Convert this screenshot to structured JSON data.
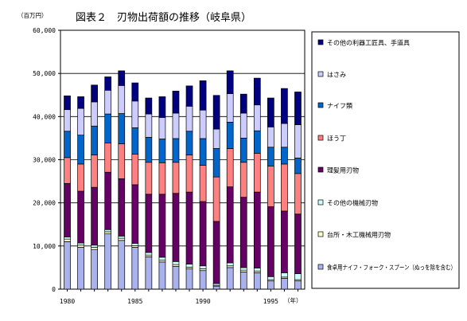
{
  "chart_data": {
    "type": "bar",
    "stacked": true,
    "title": "図表２　刃物出荷額の推移（岐阜県）",
    "ylabel": "（百万円）",
    "xlabel": "（年）",
    "ylim": [
      0,
      60000
    ],
    "yticks": [
      "0",
      "10,000",
      "20,000",
      "30,000",
      "40,000",
      "50,000",
      "60,000"
    ],
    "ytick_values": [
      0,
      10000,
      20000,
      30000,
      40000,
      50000,
      60000
    ],
    "grid": true,
    "legend_position": "right",
    "years": [
      1980,
      1981,
      1982,
      1983,
      1984,
      1985,
      1986,
      1987,
      1988,
      1989,
      1990,
      1991,
      1992,
      1993,
      1994,
      1995,
      1996,
      1997
    ],
    "xtick_labels": [
      "1980",
      "1985",
      "1990",
      "1995"
    ],
    "xtick_years": [
      1980,
      1985,
      1990,
      1995
    ],
    "series": [
      {
        "name": "食卓用ナイフ・フォーク・スプーン（ぬっを除を含む）",
        "color": "#aab2ee",
        "values": [
          11000,
          9700,
          9200,
          12800,
          11300,
          9700,
          7500,
          6300,
          5300,
          4700,
          4300,
          700,
          5000,
          4000,
          3800,
          1900,
          2500,
          1900
        ]
      },
      {
        "name": "台所・木工機械用刃物",
        "color": "#ffffcc",
        "values": [
          600,
          500,
          500,
          500,
          500,
          400,
          400,
          400,
          400,
          400,
          400,
          200,
          400,
          400,
          400,
          300,
          300,
          300
        ]
      },
      {
        "name": "その他の機械刃物",
        "color": "#ccffff",
        "values": [
          500,
          500,
          500,
          500,
          500,
          500,
          600,
          700,
          700,
          700,
          700,
          400,
          700,
          600,
          700,
          700,
          1000,
          1400
        ]
      },
      {
        "name": "理髪用刃物",
        "color": "#660066",
        "values": [
          12400,
          12000,
          13400,
          13300,
          13300,
          13600,
          13500,
          14600,
          15800,
          16700,
          14900,
          14400,
          17600,
          16300,
          17600,
          16200,
          14300,
          13800
        ]
      },
      {
        "name": "ほう丁",
        "color": "#ff8080",
        "values": [
          6000,
          6300,
          7500,
          6800,
          8100,
          7100,
          7400,
          7300,
          7200,
          8600,
          8400,
          10300,
          8900,
          8100,
          9000,
          9400,
          10900,
          9400
        ]
      },
      {
        "name": "ナイフ類",
        "color": "#0066cc",
        "values": [
          6100,
          6700,
          6700,
          6700,
          7000,
          6100,
          5800,
          5500,
          5500,
          5500,
          6200,
          6600,
          6100,
          5600,
          5200,
          4400,
          3900,
          3600
        ]
      },
      {
        "name": "はさみ",
        "color": "#ccccff",
        "values": [
          5000,
          6200,
          5600,
          5500,
          6500,
          6200,
          5400,
          5000,
          5900,
          5800,
          6600,
          4500,
          6600,
          5800,
          6000,
          4700,
          5500,
          7700
        ]
      },
      {
        "name": "その他の利器工匠具、手道具",
        "color": "#000080",
        "values": [
          3200,
          2700,
          3900,
          3100,
          3400,
          4200,
          3700,
          4800,
          5100,
          4700,
          6800,
          7800,
          5300,
          4400,
          6200,
          6700,
          8100,
          7600
        ]
      }
    ]
  }
}
